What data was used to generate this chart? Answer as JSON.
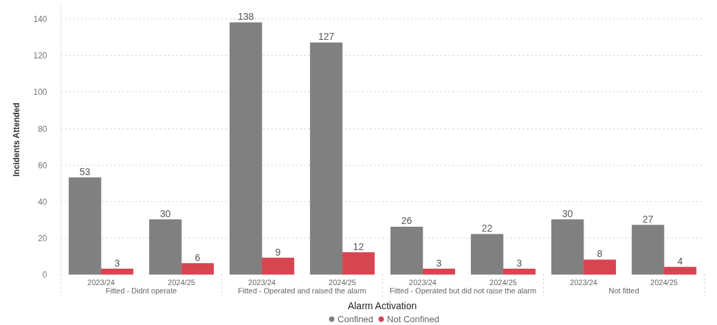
{
  "chart_data": {
    "type": "bar",
    "xlabel": "Alarm Activation",
    "ylabel": "Incidents Attended",
    "categories": [
      [
        "Fitted - Didnt operate",
        "2023/24"
      ],
      [
        null,
        "2024/25"
      ],
      [
        "Fitted - Operated and raised the alarm",
        "2023/24"
      ],
      [
        null,
        "2024/25"
      ],
      [
        "Fitted - Operated but did not raise the alarm",
        "2023/24"
      ],
      [
        null,
        "2024/25"
      ],
      [
        "Not fitted",
        "2023/24"
      ],
      [
        null,
        "2024/25"
      ]
    ],
    "series": [
      {
        "name": "Confined",
        "color": "#808080",
        "values": [
          53,
          30,
          138,
          127,
          26,
          22,
          30,
          27
        ]
      },
      {
        "name": "Not Confined",
        "color": "#d64550",
        "values": [
          3,
          6,
          9,
          12,
          3,
          3,
          8,
          4
        ]
      }
    ],
    "ylim": [
      0,
      148
    ],
    "yticks": [
      0,
      20,
      40,
      60,
      80,
      100,
      120,
      140
    ],
    "grid": "y",
    "legend": "bottom",
    "data_labels": true
  }
}
